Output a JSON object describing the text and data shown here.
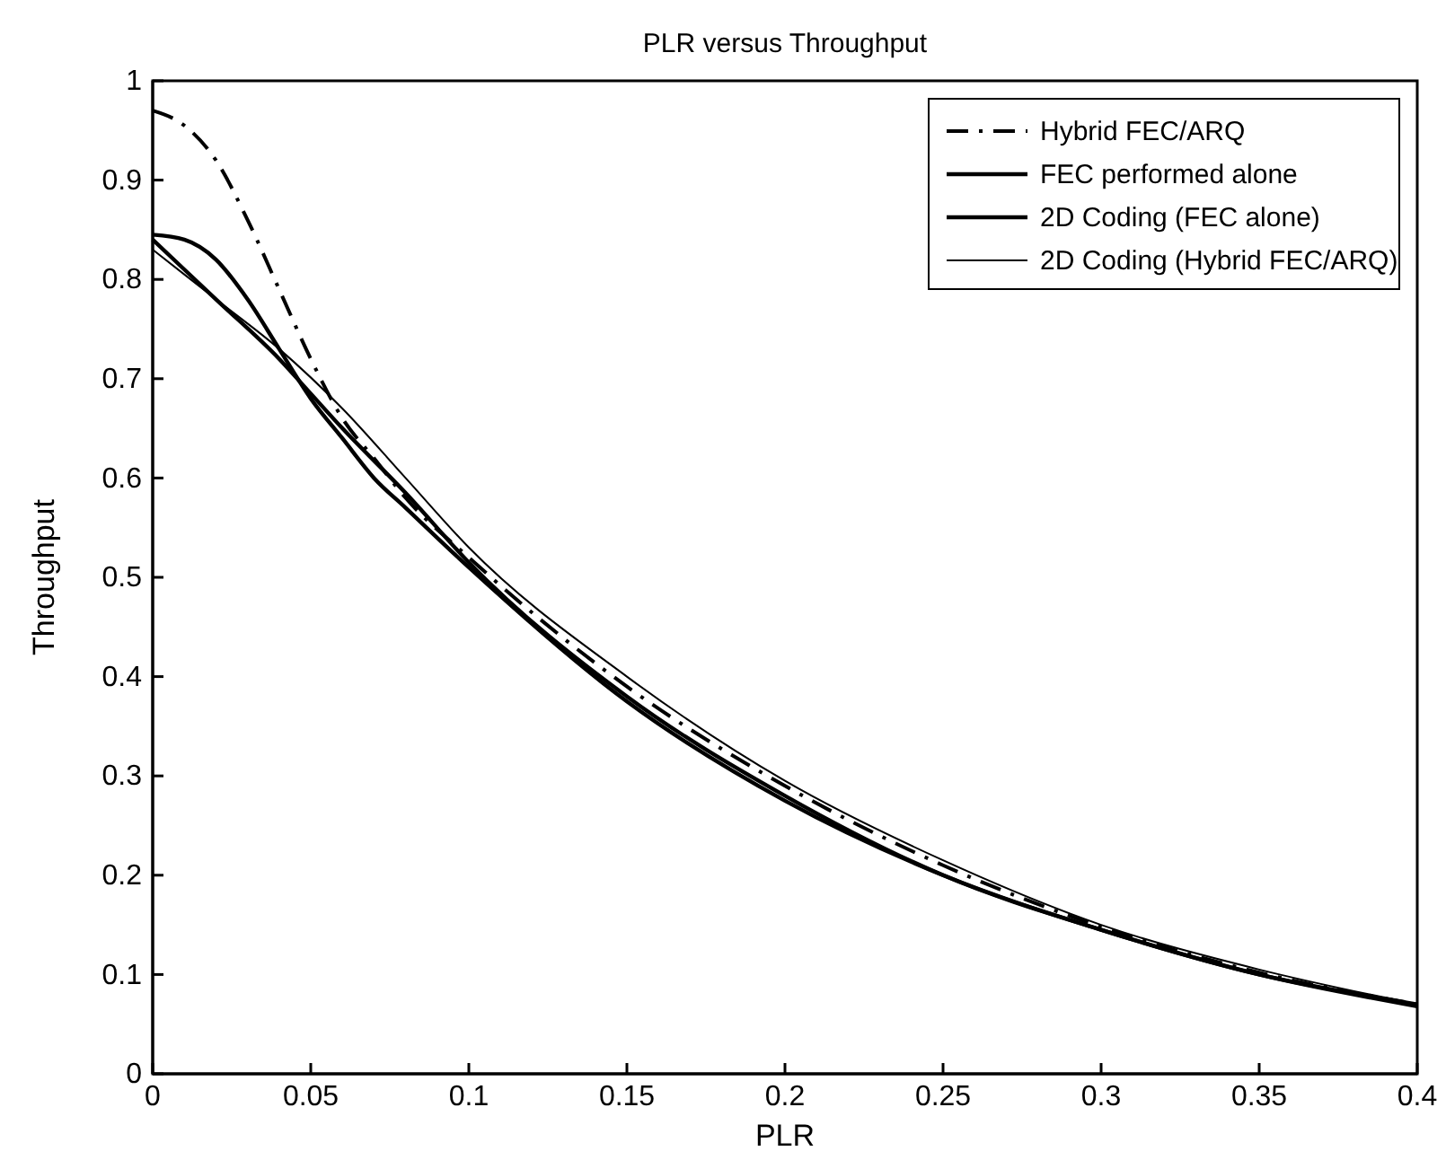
{
  "chart_data": {
    "type": "line",
    "title": "PLR versus Throughput",
    "xlabel": "PLR",
    "ylabel": "Throughput",
    "xlim": [
      0,
      0.4
    ],
    "ylim": [
      0,
      1
    ],
    "xticks": [
      0,
      0.05,
      0.1,
      0.15,
      0.2,
      0.25,
      0.3,
      0.35,
      0.4
    ],
    "yticks": [
      0,
      0.1,
      0.2,
      0.3,
      0.4,
      0.5,
      0.6,
      0.7,
      0.8,
      0.9,
      1
    ],
    "grid": false,
    "legend": "top right",
    "marker": "none",
    "series": [
      {
        "name": "Hybrid FEC/ARQ",
        "color": "#000000",
        "line_style": "dashed",
        "x": [
          0,
          0.01,
          0.02,
          0.03,
          0.04,
          0.05,
          0.06,
          0.07,
          0.08,
          0.1,
          0.15,
          0.2,
          0.25,
          0.3,
          0.35,
          0.4
        ],
        "values": [
          0.97,
          0.955,
          0.92,
          0.86,
          0.79,
          0.72,
          0.66,
          0.62,
          0.58,
          0.52,
          0.39,
          0.29,
          0.21,
          0.148,
          0.102,
          0.07
        ]
      },
      {
        "name": "FEC performed alone",
        "color": "#000000",
        "line_style": "solid",
        "x": [
          0,
          0.01,
          0.02,
          0.03,
          0.04,
          0.05,
          0.06,
          0.07,
          0.08,
          0.1,
          0.15,
          0.2,
          0.25,
          0.3,
          0.35,
          0.4
        ],
        "values": [
          0.845,
          0.84,
          0.82,
          0.78,
          0.73,
          0.68,
          0.64,
          0.6,
          0.57,
          0.51,
          0.375,
          0.275,
          0.2,
          0.145,
          0.1,
          0.07
        ]
      },
      {
        "name": "2D Coding (FEC alone)",
        "color": "#000000",
        "line_style": "solid",
        "x": [
          0,
          0.02,
          0.04,
          0.05,
          0.06,
          0.08,
          0.1,
          0.15,
          0.2,
          0.25,
          0.3,
          0.35,
          0.4
        ],
        "values": [
          0.84,
          0.78,
          0.72,
          0.685,
          0.65,
          0.585,
          0.515,
          0.38,
          0.28,
          0.2,
          0.145,
          0.1,
          0.068
        ]
      },
      {
        "name": "2D Coding (Hybrid FEC/ARQ)",
        "color": "#000000",
        "line_style": "solid",
        "x": [
          0,
          0.02,
          0.04,
          0.06,
          0.08,
          0.1,
          0.15,
          0.2,
          0.25,
          0.3,
          0.35,
          0.4
        ],
        "values": [
          0.83,
          0.78,
          0.73,
          0.67,
          0.6,
          0.53,
          0.4,
          0.295,
          0.215,
          0.15,
          0.105,
          0.07
        ]
      }
    ]
  }
}
